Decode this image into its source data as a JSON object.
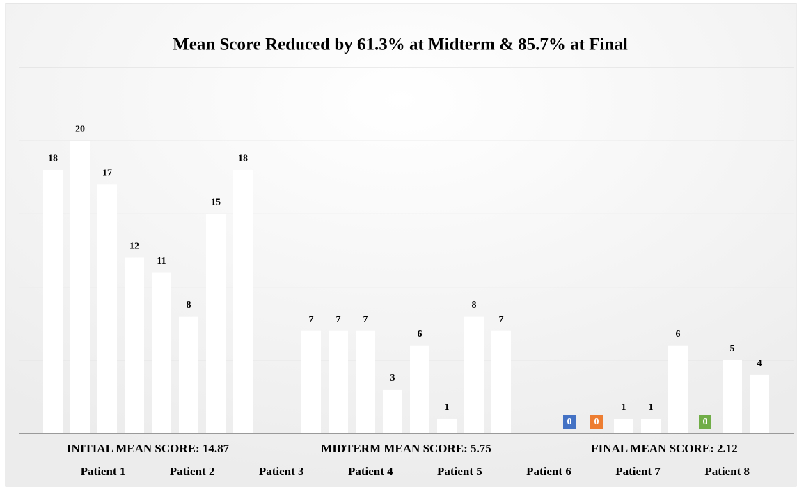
{
  "chart_data": {
    "type": "bar",
    "title": "Mean Score Reduced by 61.3% at Midterm & 85.7% at Final",
    "categories": [
      "INITIAL MEAN SCORE: 14.87",
      "MIDTERM MEAN SCORE: 5.75",
      "FINAL MEAN SCORE: 2.12"
    ],
    "series": [
      {
        "name": "Patient 1",
        "color": "#4472c4",
        "values": [
          18,
          7,
          0
        ]
      },
      {
        "name": "Patient 2",
        "color": "#ed7d31",
        "values": [
          20,
          7,
          0
        ]
      },
      {
        "name": "Patient 3",
        "color": "#a5a5a5",
        "values": [
          17,
          7,
          1
        ]
      },
      {
        "name": "Patient 4",
        "color": "#ffc000",
        "values": [
          12,
          3,
          1
        ]
      },
      {
        "name": "Patient 5",
        "color": "#5b9bd5",
        "values": [
          11,
          6,
          6
        ]
      },
      {
        "name": "Patient 6",
        "color": "#70ad47",
        "values": [
          8,
          1,
          0
        ]
      },
      {
        "name": "Patient 7",
        "color": "#264478",
        "values": [
          15,
          8,
          5
        ]
      },
      {
        "name": "Patient 8",
        "color": "#9e480e",
        "values": [
          18,
          7,
          4
        ]
      }
    ],
    "bar_fill": "#ffffff",
    "ylim": [
      0,
      25
    ],
    "yticks": [
      0,
      5,
      10,
      15,
      20,
      25
    ],
    "grid": true,
    "legend": "bottom"
  }
}
